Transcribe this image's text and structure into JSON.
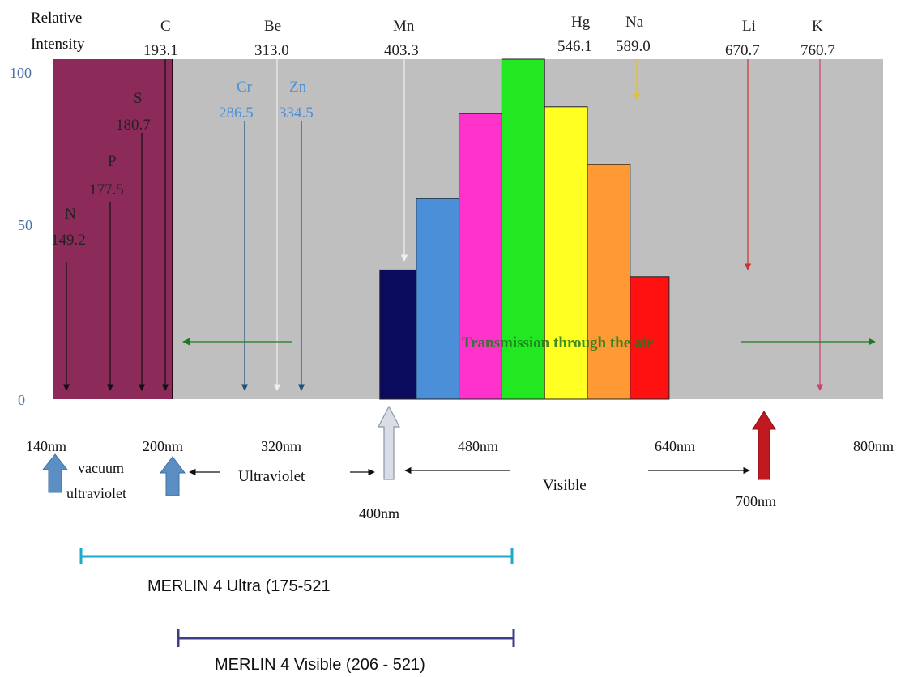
{
  "y_axis": {
    "title_line1": "Relative",
    "title_line2": "Intensity",
    "ticks": [
      "100",
      "50",
      "0"
    ]
  },
  "elements": [
    {
      "symbol": "C",
      "wavelength": "193.1",
      "color": "#222222"
    },
    {
      "symbol": "Be",
      "wavelength": "313.0",
      "color": "#222222"
    },
    {
      "symbol": "Mn",
      "wavelength": "403.3",
      "color": "#222222"
    },
    {
      "symbol": "Hg",
      "wavelength": "546.1",
      "color": "#222222"
    },
    {
      "symbol": "Na",
      "wavelength": "589.0",
      "color": "#222222"
    },
    {
      "symbol": "Li",
      "wavelength": "670.7",
      "color": "#222222"
    },
    {
      "symbol": "K",
      "wavelength": "760.7",
      "color": "#222222"
    },
    {
      "symbol": "S",
      "wavelength": "180.7",
      "color": "#222222"
    },
    {
      "symbol": "P",
      "wavelength": "177.5",
      "color": "#222222"
    },
    {
      "symbol": "N",
      "wavelength": "149.2",
      "color": "#222222"
    },
    {
      "symbol": "Cr",
      "wavelength": "286.5",
      "color": "#4a90d9"
    },
    {
      "symbol": "Zn",
      "wavelength": "334.5",
      "color": "#4a90d9"
    }
  ],
  "bars": [
    {
      "from": 400,
      "to": 429,
      "value": 38,
      "color": "#0b0b5e"
    },
    {
      "from": 429,
      "to": 463,
      "value": 59,
      "color": "#4a8fd8"
    },
    {
      "from": 463,
      "to": 497,
      "value": 84,
      "color": "#ff33cc"
    },
    {
      "from": 497,
      "to": 531,
      "value": 100,
      "color": "#22e822"
    },
    {
      "from": 531,
      "to": 565,
      "value": 86,
      "color": "#ffff22"
    },
    {
      "from": 565,
      "to": 599,
      "value": 69,
      "color": "#ff9933"
    },
    {
      "from": 599,
      "to": 630,
      "value": 36,
      "color": "#ff1111"
    }
  ],
  "x_axis_labels": [
    "140nm",
    "200nm",
    "320nm",
    "480nm",
    "640nm",
    "800nm",
    "400nm",
    "700nm"
  ],
  "regions": {
    "vacuum_line1": "vacuum",
    "vacuum_line2": "ultraviolet",
    "ultraviolet": "Ultraviolet",
    "visible": "Visible",
    "transmission": "Transmission through the air"
  },
  "ranges": [
    {
      "label": "MERLIN 4 Ultra (175-521",
      "color": "#1fa9c8"
    },
    {
      "label": "MERLIN 4 Visible (206 - 521)",
      "color": "#3b3f8a"
    }
  ],
  "colors": {
    "plot_background": "#bfbfbf",
    "vacuum_region": "#8c2a5a",
    "axis_tick_text": "#4a72a6",
    "transmission_text": "#1e7a1e"
  }
}
